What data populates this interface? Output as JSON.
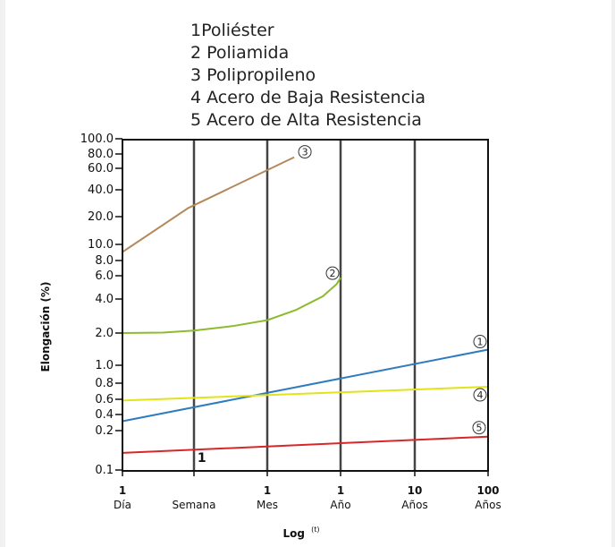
{
  "chart_data": {
    "type": "line",
    "legend": [
      "1Poliéster",
      "2 Poliamida",
      "3 Polipropileno",
      "4 Acero de Baja Resistencia",
      "5 Acero de Alta Resistencia"
    ],
    "ylabel": "Elongación (%)",
    "xlabel": "Log",
    "xlabel_sup": "(t)",
    "y_ticks": [
      {
        "value": 100,
        "label": "100.0"
      },
      {
        "value": 80,
        "label": "80.0"
      },
      {
        "value": 60,
        "label": "60.0"
      },
      {
        "value": 40,
        "label": "40.0"
      },
      {
        "value": 20,
        "label": "20.0"
      },
      {
        "value": 10,
        "label": "10.0"
      },
      {
        "value": 8,
        "label": "8.0"
      },
      {
        "value": 6,
        "label": "6.0"
      },
      {
        "value": 4,
        "label": "4.0"
      },
      {
        "value": 2,
        "label": "2.0"
      },
      {
        "value": 1,
        "label": "1.0"
      },
      {
        "value": 0.8,
        "label": "0.8"
      },
      {
        "value": 0.6,
        "label": "0.6"
      },
      {
        "value": 0.4,
        "label": "0.4"
      },
      {
        "value": 0.2,
        "label": "0.2"
      },
      {
        "value": 0.1,
        "label": "0.1"
      }
    ],
    "x_ticks": [
      {
        "value": 1,
        "num": "1",
        "unit": "Día"
      },
      {
        "value": 7,
        "num": "",
        "unit": "Semana"
      },
      {
        "value": 30,
        "num": "1",
        "unit": "Mes"
      },
      {
        "value": 365,
        "num": "1",
        "unit": "Año"
      },
      {
        "value": 3650,
        "num": "10",
        "unit": "Años"
      },
      {
        "value": 36500,
        "num": "100",
        "unit": "Años"
      }
    ],
    "x_unit": "days",
    "x_scale": "log",
    "gridlines_x": [
      7,
      30,
      365,
      3650
    ],
    "inline_label": {
      "text": "1",
      "x": 7.5,
      "y": 0.125
    },
    "series": [
      {
        "marker": "3",
        "color": "#b5885a",
        "x": [
          1,
          6,
          75
        ],
        "y": [
          9,
          25,
          75
        ]
      },
      {
        "marker": "2",
        "color": "#8dbb2e",
        "x": [
          1,
          3,
          7,
          15,
          30,
          80,
          200,
          320,
          365
        ],
        "y": [
          2,
          2.02,
          2.1,
          2.3,
          2.6,
          3.2,
          4.2,
          5.2,
          5.8
        ]
      },
      {
        "marker": "1",
        "color": "#2e7bbf",
        "x": [
          1,
          36500
        ],
        "y": [
          0.3,
          1.4
        ]
      },
      {
        "marker": "4",
        "color": "#e2e31c",
        "x": [
          1,
          36500
        ],
        "y": [
          0.58,
          0.75
        ]
      },
      {
        "marker": "5",
        "color": "#d9262a",
        "x": [
          1,
          36500
        ],
        "y": [
          0.135,
          0.18
        ]
      }
    ]
  }
}
